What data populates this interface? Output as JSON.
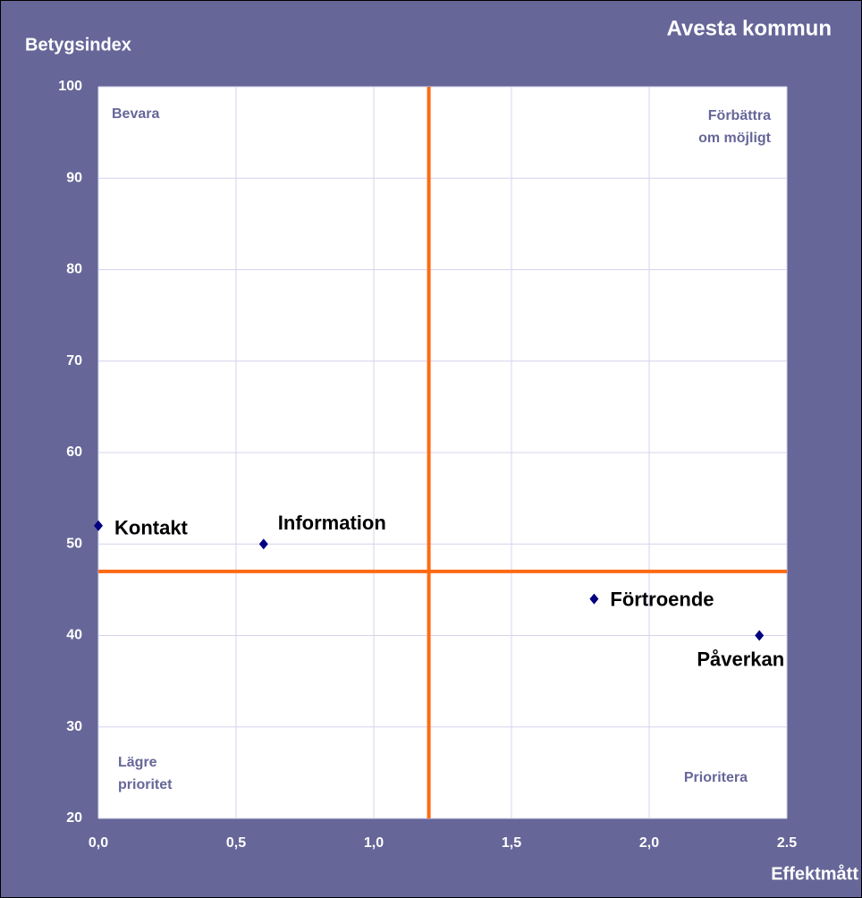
{
  "chart_data": {
    "type": "scatter",
    "title": "Avesta kommun",
    "xlabel": "Effektmått",
    "ylabel": "Betygsindex",
    "xlim": [
      0,
      2.5
    ],
    "ylim": [
      20,
      100
    ],
    "xticks": [
      {
        "value": 0,
        "label": "0,0"
      },
      {
        "value": 0.5,
        "label": "0,5"
      },
      {
        "value": 1,
        "label": "1,0"
      },
      {
        "value": 1.5,
        "label": "1,5"
      },
      {
        "value": 2,
        "label": "2,0"
      },
      {
        "value": 2.5,
        "label": "2.5"
      }
    ],
    "yticks": [
      20,
      30,
      40,
      50,
      60,
      70,
      80,
      90,
      100
    ],
    "grid": true,
    "color": "#000080",
    "line_color": "#ff6a13",
    "xline": 1.2,
    "yline": 47,
    "points": [
      {
        "name": "Kontakt",
        "x": 0,
        "y": 52
      },
      {
        "name": "Information",
        "x": 0.6,
        "y": 50
      },
      {
        "name": "Förtroende",
        "x": 1.8,
        "y": 44
      },
      {
        "name": "Påverkan",
        "x": 2.4,
        "y": 40
      }
    ],
    "quadrant_labels": {
      "top_left": [
        "Bevara"
      ],
      "top_right": [
        "Förbättra",
        "om möjligt"
      ],
      "bottom_left": [
        "Lägre",
        "prioritet"
      ],
      "bottom_right": [
        "Prioritera"
      ]
    }
  }
}
